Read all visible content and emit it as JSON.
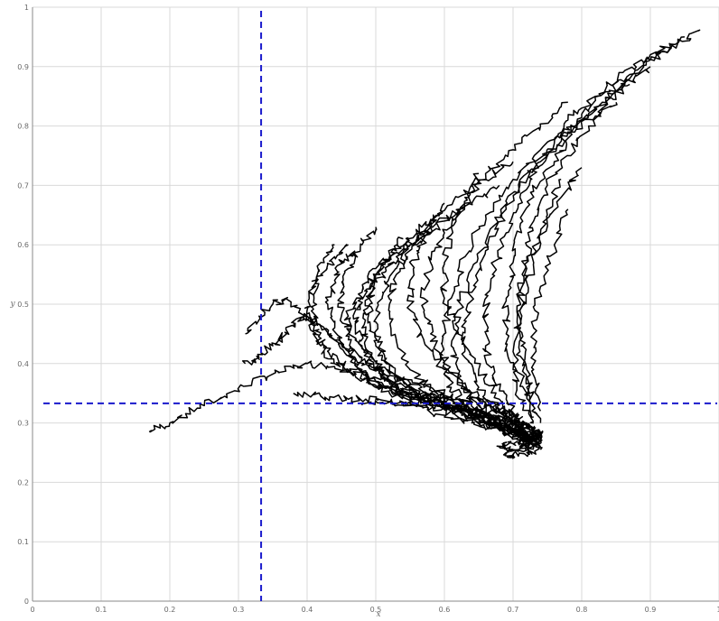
{
  "chart_data": {
    "type": "line",
    "title": "",
    "xlabel": "x",
    "ylabel": "y",
    "xlim": [
      0,
      1
    ],
    "ylim": [
      0,
      1
    ],
    "grid": true,
    "xticks": [
      "0",
      "0.1",
      "0.2",
      "0.3",
      "0.4",
      "0.5",
      "0.6",
      "0.7",
      "0.8",
      "0.9",
      "1"
    ],
    "yticks": [
      "0",
      "0.1",
      "0.2",
      "0.3",
      "0.4",
      "0.5",
      "0.6",
      "0.7",
      "0.8",
      "0.9",
      "1"
    ],
    "reference_lines": {
      "vertical_x": 0.333,
      "horizontal_y": 0.333,
      "color": "#1a1acc",
      "style": "dashed"
    },
    "series_color": "#000000",
    "series": [
      {
        "x": [
          0.17,
          0.2,
          0.24,
          0.28,
          0.32,
          0.36,
          0.4,
          0.44,
          0.48,
          0.52,
          0.56,
          0.6,
          0.64,
          0.68,
          0.71,
          0.73,
          0.74,
          0.73,
          0.72,
          0.7,
          0.69,
          0.68,
          0.65,
          0.62
        ],
        "y": [
          0.285,
          0.3,
          0.325,
          0.345,
          0.37,
          0.385,
          0.4,
          0.395,
          0.385,
          0.37,
          0.35,
          0.335,
          0.315,
          0.29,
          0.27,
          0.26,
          0.27,
          0.28,
          0.3,
          0.31,
          0.32,
          0.33,
          0.34,
          0.34
        ]
      },
      {
        "x": [
          0.31,
          0.33,
          0.35,
          0.37,
          0.38,
          0.4,
          0.43,
          0.47,
          0.52,
          0.57,
          0.62,
          0.67,
          0.71,
          0.73,
          0.74
        ],
        "y": [
          0.4,
          0.41,
          0.43,
          0.45,
          0.47,
          0.48,
          0.45,
          0.41,
          0.38,
          0.36,
          0.34,
          0.31,
          0.29,
          0.275,
          0.26
        ]
      },
      {
        "x": [
          0.31,
          0.33,
          0.35,
          0.37,
          0.4,
          0.44,
          0.48,
          0.5,
          0.53,
          0.57,
          0.61,
          0.65,
          0.7,
          0.74
        ],
        "y": [
          0.45,
          0.48,
          0.5,
          0.51,
          0.48,
          0.44,
          0.41,
          0.39,
          0.36,
          0.34,
          0.33,
          0.32,
          0.3,
          0.28
        ]
      },
      {
        "x": [
          0.97,
          0.94,
          0.9,
          0.86,
          0.82,
          0.78,
          0.74,
          0.7,
          0.66,
          0.63,
          0.61,
          0.6,
          0.6,
          0.61,
          0.63,
          0.65,
          0.68,
          0.71,
          0.73
        ],
        "y": [
          0.96,
          0.94,
          0.92,
          0.89,
          0.85,
          0.81,
          0.76,
          0.71,
          0.65,
          0.58,
          0.51,
          0.45,
          0.4,
          0.36,
          0.33,
          0.31,
          0.29,
          0.28,
          0.26
        ]
      },
      {
        "x": [
          0.95,
          0.91,
          0.87,
          0.83,
          0.79,
          0.75,
          0.71,
          0.67,
          0.64,
          0.62,
          0.61,
          0.62,
          0.64,
          0.67,
          0.7,
          0.72,
          0.74
        ],
        "y": [
          0.95,
          0.92,
          0.88,
          0.84,
          0.8,
          0.75,
          0.7,
          0.63,
          0.56,
          0.49,
          0.43,
          0.38,
          0.34,
          0.31,
          0.29,
          0.27,
          0.26
        ]
      },
      {
        "x": [
          0.93,
          0.89,
          0.84,
          0.8,
          0.76,
          0.72,
          0.69,
          0.66,
          0.64,
          0.63,
          0.63,
          0.65,
          0.68,
          0.71,
          0.73
        ],
        "y": [
          0.93,
          0.9,
          0.86,
          0.82,
          0.77,
          0.72,
          0.66,
          0.59,
          0.52,
          0.46,
          0.41,
          0.36,
          0.32,
          0.29,
          0.27
        ]
      },
      {
        "x": [
          0.9,
          0.86,
          0.82,
          0.78,
          0.74,
          0.71,
          0.69,
          0.67,
          0.66,
          0.66,
          0.67,
          0.69,
          0.71,
          0.73
        ],
        "y": [
          0.9,
          0.87,
          0.83,
          0.79,
          0.74,
          0.68,
          0.62,
          0.55,
          0.49,
          0.43,
          0.38,
          0.34,
          0.3,
          0.27
        ]
      },
      {
        "x": [
          0.87,
          0.83,
          0.79,
          0.76,
          0.73,
          0.71,
          0.7,
          0.69,
          0.69,
          0.7,
          0.71,
          0.73
        ],
        "y": [
          0.87,
          0.83,
          0.79,
          0.74,
          0.69,
          0.63,
          0.57,
          0.51,
          0.45,
          0.39,
          0.34,
          0.3
        ]
      },
      {
        "x": [
          0.85,
          0.81,
          0.78,
          0.75,
          0.73,
          0.72,
          0.71,
          0.71,
          0.72,
          0.73
        ],
        "y": [
          0.84,
          0.8,
          0.75,
          0.7,
          0.64,
          0.58,
          0.52,
          0.45,
          0.39,
          0.33
        ]
      },
      {
        "x": [
          0.8,
          0.77,
          0.74,
          0.72,
          0.71,
          0.71,
          0.72,
          0.73
        ],
        "y": [
          0.73,
          0.68,
          0.62,
          0.56,
          0.49,
          0.42,
          0.36,
          0.31
        ]
      },
      {
        "x": [
          0.78,
          0.76,
          0.74,
          0.73,
          0.73,
          0.74
        ],
        "y": [
          0.66,
          0.6,
          0.53,
          0.46,
          0.39,
          0.32
        ]
      },
      {
        "x": [
          0.77,
          0.75,
          0.73,
          0.71,
          0.7,
          0.72,
          0.74
        ],
        "y": [
          0.71,
          0.65,
          0.57,
          0.49,
          0.42,
          0.35,
          0.3
        ]
      },
      {
        "x": [
          0.78,
          0.74,
          0.7,
          0.66,
          0.63,
          0.6,
          0.58,
          0.57,
          0.58,
          0.6,
          0.63,
          0.66,
          0.69,
          0.71,
          0.73
        ],
        "y": [
          0.84,
          0.8,
          0.76,
          0.72,
          0.67,
          0.62,
          0.57,
          0.51,
          0.45,
          0.4,
          0.36,
          0.33,
          0.3,
          0.28,
          0.27
        ]
      },
      {
        "x": [
          0.7,
          0.66,
          0.62,
          0.58,
          0.55,
          0.53,
          0.52,
          0.53,
          0.55,
          0.58,
          0.62,
          0.66,
          0.7,
          0.73
        ],
        "y": [
          0.74,
          0.71,
          0.68,
          0.64,
          0.6,
          0.55,
          0.5,
          0.44,
          0.39,
          0.36,
          0.33,
          0.31,
          0.29,
          0.27
        ]
      },
      {
        "x": [
          0.68,
          0.64,
          0.6,
          0.56,
          0.53,
          0.51,
          0.5,
          0.51,
          0.53,
          0.56,
          0.6,
          0.64,
          0.68,
          0.72
        ],
        "y": [
          0.7,
          0.67,
          0.64,
          0.6,
          0.56,
          0.52,
          0.47,
          0.42,
          0.38,
          0.35,
          0.33,
          0.31,
          0.29,
          0.27
        ]
      },
      {
        "x": [
          0.63,
          0.59,
          0.56,
          0.53,
          0.51,
          0.49,
          0.48,
          0.49,
          0.51,
          0.54,
          0.58,
          0.62,
          0.66,
          0.7,
          0.73
        ],
        "y": [
          0.66,
          0.64,
          0.61,
          0.58,
          0.55,
          0.51,
          0.46,
          0.42,
          0.38,
          0.35,
          0.33,
          0.31,
          0.3,
          0.29,
          0.27
        ]
      },
      {
        "x": [
          0.59,
          0.56,
          0.53,
          0.5,
          0.48,
          0.46,
          0.46,
          0.47,
          0.49,
          0.52,
          0.56,
          0.6,
          0.64,
          0.68,
          0.72
        ],
        "y": [
          0.65,
          0.62,
          0.59,
          0.56,
          0.52,
          0.48,
          0.44,
          0.4,
          0.37,
          0.35,
          0.33,
          0.31,
          0.3,
          0.29,
          0.28
        ]
      },
      {
        "x": [
          0.58,
          0.55,
          0.52,
          0.5,
          0.48,
          0.47,
          0.48,
          0.5,
          0.53,
          0.57,
          0.62,
          0.67,
          0.71,
          0.74
        ],
        "y": [
          0.63,
          0.6,
          0.58,
          0.55,
          0.51,
          0.47,
          0.43,
          0.39,
          0.36,
          0.34,
          0.32,
          0.3,
          0.28,
          0.27
        ]
      },
      {
        "x": [
          0.47,
          0.45,
          0.44,
          0.43,
          0.44,
          0.46,
          0.48,
          0.5,
          0.53,
          0.57,
          0.62,
          0.67,
          0.71,
          0.74
        ],
        "y": [
          0.59,
          0.57,
          0.54,
          0.5,
          0.46,
          0.42,
          0.39,
          0.37,
          0.35,
          0.34,
          0.32,
          0.3,
          0.28,
          0.27
        ]
      },
      {
        "x": [
          0.46,
          0.44,
          0.42,
          0.41,
          0.41,
          0.42,
          0.44,
          0.47,
          0.51,
          0.56,
          0.61,
          0.66,
          0.7,
          0.73
        ],
        "y": [
          0.6,
          0.58,
          0.55,
          0.51,
          0.47,
          0.43,
          0.4,
          0.38,
          0.36,
          0.34,
          0.33,
          0.31,
          0.29,
          0.27
        ]
      },
      {
        "x": [
          0.44,
          0.42,
          0.41,
          0.4,
          0.41,
          0.43,
          0.46,
          0.5,
          0.55,
          0.6,
          0.65,
          0.7,
          0.74
        ],
        "y": [
          0.6,
          0.57,
          0.53,
          0.49,
          0.45,
          0.42,
          0.39,
          0.37,
          0.35,
          0.34,
          0.32,
          0.3,
          0.27
        ]
      },
      {
        "x": [
          0.5,
          0.48,
          0.46,
          0.45,
          0.45,
          0.47,
          0.5,
          0.54,
          0.58,
          0.62,
          0.66,
          0.7,
          0.73
        ],
        "y": [
          0.63,
          0.6,
          0.56,
          0.52,
          0.48,
          0.44,
          0.4,
          0.37,
          0.35,
          0.33,
          0.31,
          0.29,
          0.27
        ]
      },
      {
        "x": [
          0.54,
          0.52,
          0.5,
          0.49,
          0.49,
          0.5,
          0.52,
          0.55,
          0.59,
          0.63,
          0.67,
          0.71,
          0.74
        ],
        "y": [
          0.61,
          0.58,
          0.55,
          0.51,
          0.47,
          0.43,
          0.39,
          0.36,
          0.34,
          0.32,
          0.3,
          0.28,
          0.26
        ]
      },
      {
        "x": [
          0.6,
          0.58,
          0.56,
          0.55,
          0.55,
          0.57,
          0.6,
          0.64,
          0.68,
          0.71,
          0.73
        ],
        "y": [
          0.67,
          0.63,
          0.59,
          0.54,
          0.49,
          0.44,
          0.39,
          0.35,
          0.32,
          0.29,
          0.27
        ]
      },
      {
        "x": [
          0.65,
          0.63,
          0.61,
          0.6,
          0.6,
          0.62,
          0.65,
          0.68,
          0.71,
          0.74
        ],
        "y": [
          0.72,
          0.68,
          0.63,
          0.57,
          0.51,
          0.45,
          0.39,
          0.34,
          0.3,
          0.27
        ]
      },
      {
        "x": [
          0.48,
          0.52,
          0.56,
          0.6,
          0.64,
          0.68,
          0.71,
          0.73,
          0.74,
          0.73,
          0.71,
          0.69,
          0.7,
          0.72,
          0.74
        ],
        "y": [
          0.33,
          0.335,
          0.33,
          0.325,
          0.32,
          0.31,
          0.3,
          0.29,
          0.28,
          0.27,
          0.26,
          0.25,
          0.245,
          0.25,
          0.255
        ]
      },
      {
        "x": [
          0.38,
          0.42,
          0.46,
          0.5,
          0.54,
          0.58,
          0.62,
          0.66,
          0.7,
          0.73,
          0.74,
          0.72,
          0.7,
          0.68,
          0.7,
          0.73
        ],
        "y": [
          0.35,
          0.345,
          0.34,
          0.34,
          0.335,
          0.33,
          0.32,
          0.31,
          0.3,
          0.29,
          0.28,
          0.27,
          0.265,
          0.26,
          0.255,
          0.26
        ]
      }
    ]
  }
}
